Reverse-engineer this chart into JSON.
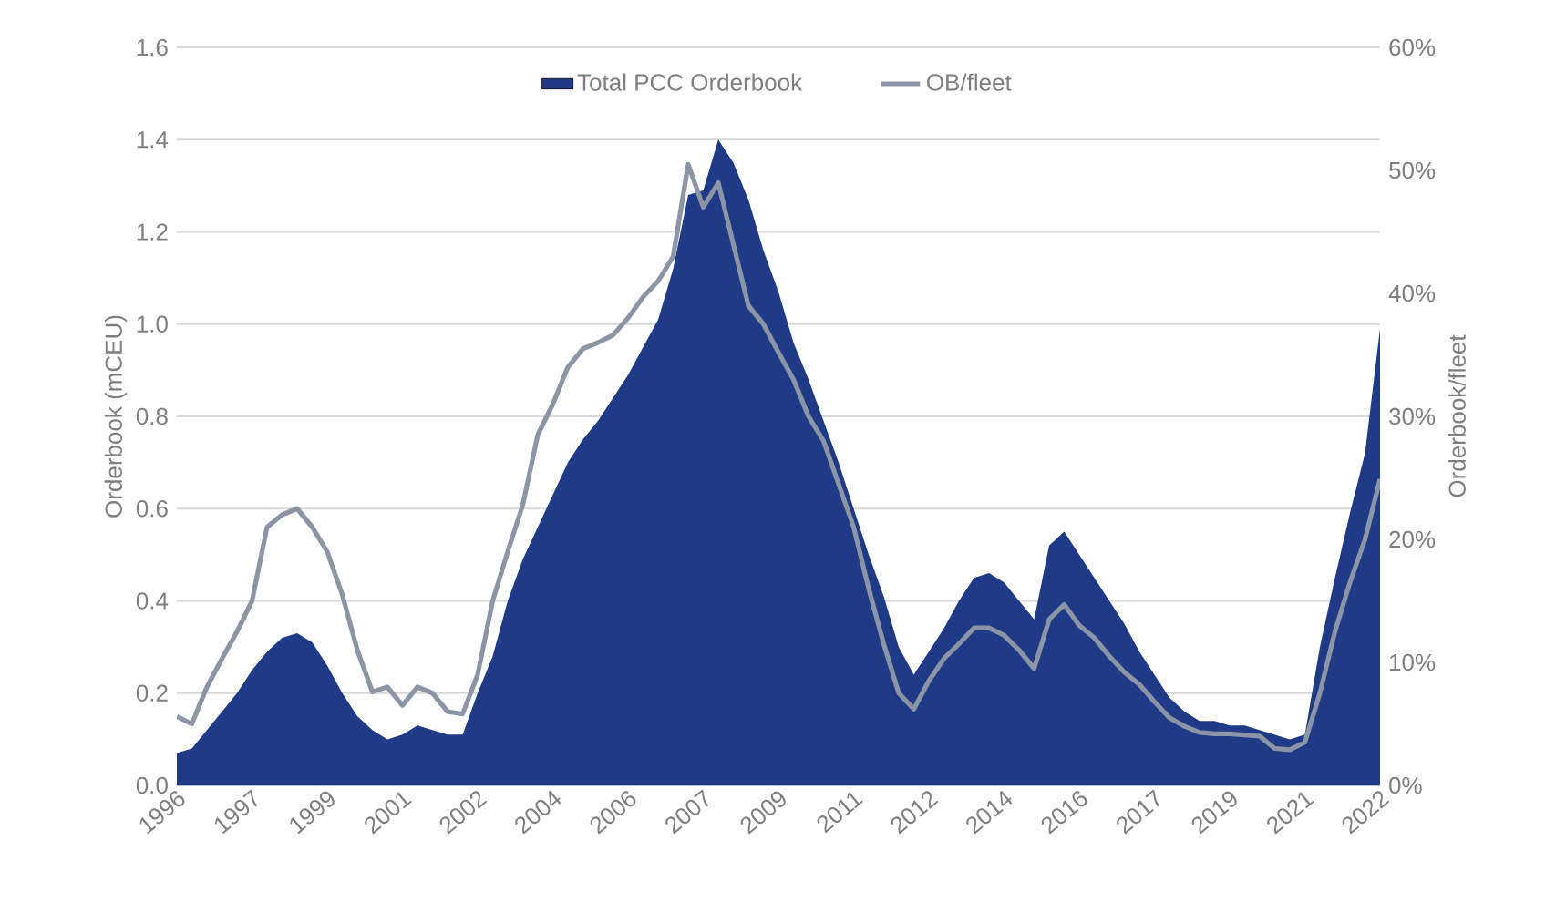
{
  "chart_data": {
    "type": "line",
    "ylabel": "Orderbook (mCEU)",
    "y2label": "Orderbook/fleet",
    "categories": [
      "1996",
      null,
      null,
      null,
      null,
      "1997",
      null,
      null,
      null,
      null,
      "1999",
      null,
      null,
      null,
      null,
      "2001",
      null,
      null,
      null,
      null,
      "2002",
      null,
      null,
      null,
      null,
      "2004",
      null,
      null,
      null,
      null,
      "2006",
      null,
      null,
      null,
      null,
      "2007",
      null,
      null,
      null,
      null,
      "2009",
      null,
      null,
      null,
      null,
      "2011",
      null,
      null,
      null,
      null,
      "2012",
      null,
      null,
      null,
      null,
      "2014",
      null,
      null,
      null,
      null,
      "2016",
      null,
      null,
      null,
      null,
      "2017",
      null,
      null,
      null,
      null,
      "2019",
      null,
      null,
      null,
      null,
      "2021",
      null,
      null,
      null,
      null,
      "2022"
    ],
    "series": [
      {
        "name": "Total PCC Orderbook",
        "type": "area",
        "color": "#1f3a86",
        "values": [
          0.07,
          0.08,
          0.12,
          0.16,
          0.2,
          0.25,
          0.29,
          0.32,
          0.33,
          0.31,
          0.26,
          0.2,
          0.15,
          0.12,
          0.1,
          0.11,
          0.13,
          0.12,
          0.11,
          0.11,
          0.2,
          0.28,
          0.4,
          0.49,
          0.56,
          0.63,
          0.7,
          0.75,
          0.79,
          0.84,
          0.89,
          0.95,
          1.01,
          1.12,
          1.28,
          1.29,
          1.4,
          1.35,
          1.27,
          1.16,
          1.07,
          0.96,
          0.88,
          0.79,
          0.7,
          0.6,
          0.5,
          0.41,
          0.3,
          0.24,
          0.29,
          0.34,
          0.4,
          0.45,
          0.46,
          0.44,
          0.4,
          0.36,
          0.52,
          0.55,
          0.5,
          0.45,
          0.4,
          0.35,
          0.29,
          0.24,
          0.19,
          0.16,
          0.14,
          0.14,
          0.13,
          0.13,
          0.12,
          0.11,
          0.1,
          0.11,
          0.3,
          0.45,
          0.59,
          0.72,
          0.99
        ]
      },
      {
        "name": "OB/fleet",
        "axis": "y2",
        "color": "#8c95a5",
        "values": [
          5.6,
          5,
          8,
          10.3,
          12.5,
          15,
          21,
          22,
          22.5,
          21,
          19,
          15.5,
          11,
          7.6,
          8,
          6.5,
          8,
          7.5,
          6,
          5.8,
          9,
          15,
          19,
          22.8,
          28.5,
          31,
          34,
          35.5,
          36,
          36.6,
          38,
          39.7,
          41,
          43,
          50.5,
          47,
          49,
          44,
          39,
          37.5,
          35.2,
          33,
          30,
          28,
          24.5,
          21,
          16,
          11.5,
          7.5,
          6.2,
          8.5,
          10.3,
          11.5,
          12.8,
          12.8,
          12.2,
          11,
          9.5,
          13.5,
          14.7,
          13,
          12,
          10.5,
          9.2,
          8.2,
          6.8,
          5.5,
          4.8,
          4.3,
          4.2,
          4.2,
          4.1,
          4,
          3,
          2.9,
          3.5,
          7.5,
          12.5,
          16.5,
          20,
          24.9
        ]
      }
    ],
    "ylim": [
      0,
      1.6
    ],
    "yticks": [
      {
        "value": 0,
        "label": "0.0"
      },
      0.2,
      0.4,
      0.6,
      0.8,
      {
        "value": 1,
        "label": "1.0"
      },
      1.2,
      1.4,
      1.6
    ],
    "y2lim": [
      0,
      60
    ],
    "y2ticks": [
      {
        "value": 0,
        "label": "0%"
      },
      {
        "value": 10,
        "label": "10%"
      },
      {
        "value": 20,
        "label": "20%"
      },
      {
        "value": 30,
        "label": "30%"
      },
      {
        "value": 40,
        "label": "40%"
      },
      {
        "value": 50,
        "label": "50%"
      },
      {
        "value": 60,
        "label": "60%"
      }
    ],
    "grid": "y",
    "legend": "top"
  }
}
